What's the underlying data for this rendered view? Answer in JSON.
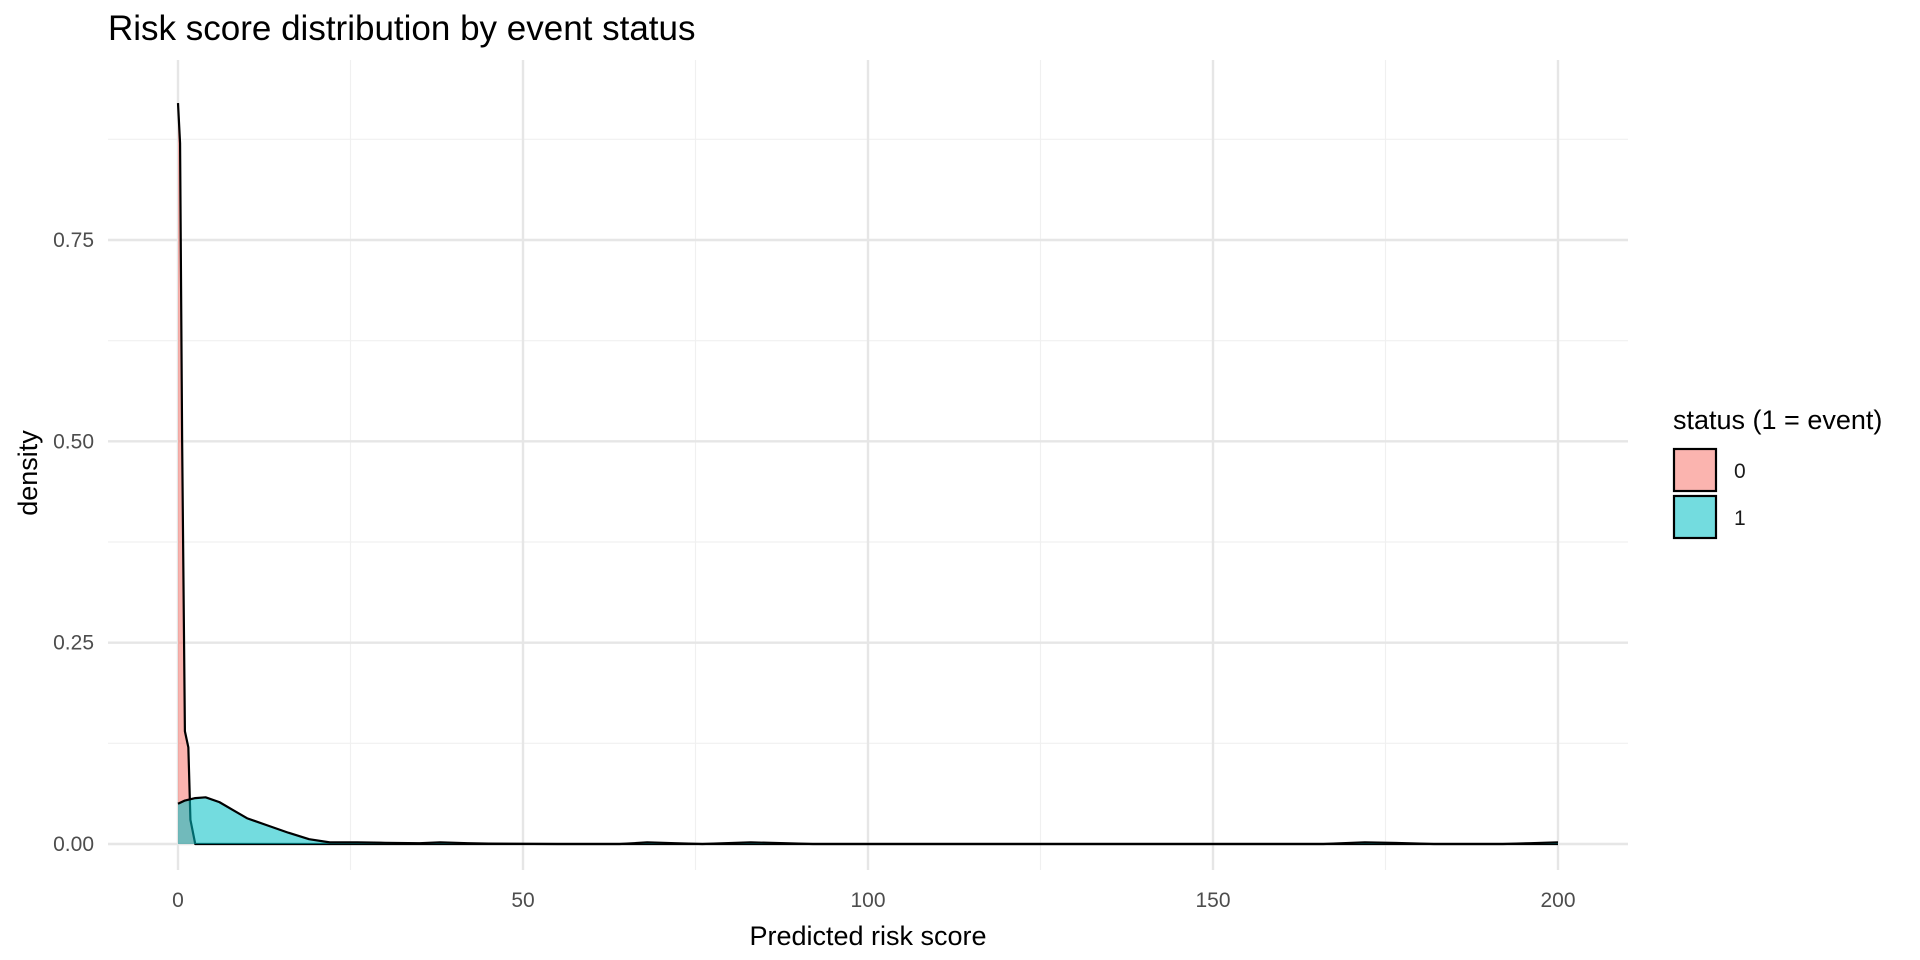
{
  "chart_data": {
    "type": "area",
    "title": "Risk score distribution by event status",
    "xlabel": "Predicted risk score",
    "ylabel": "density",
    "xlim": [
      -10,
      210
    ],
    "ylim": [
      0,
      0.93
    ],
    "x_ticks": [
      0,
      50,
      100,
      150,
      200
    ],
    "x_tick_labels": [
      "0",
      "50",
      "100",
      "150",
      "200"
    ],
    "y_ticks": [
      0,
      0.25,
      0.5,
      0.75
    ],
    "y_tick_labels": [
      "0.00",
      "0.25",
      "0.50",
      "0.75"
    ],
    "grid": true,
    "legend": {
      "title": "status (1 = event)",
      "position": "right"
    },
    "series": [
      {
        "name": "0",
        "color": "#F8766D",
        "points": [
          [
            0,
            0.92
          ],
          [
            0.3,
            0.87
          ],
          [
            0.6,
            0.5
          ],
          [
            1.0,
            0.14
          ],
          [
            1.5,
            0.12
          ],
          [
            1.8,
            0.03
          ],
          [
            2.5,
            0.0
          ],
          [
            5,
            0.0
          ],
          [
            200,
            0.0
          ]
        ]
      },
      {
        "name": "1",
        "color": "#00BFC4",
        "points": [
          [
            0,
            0.05
          ],
          [
            1,
            0.054
          ],
          [
            2.5,
            0.057
          ],
          [
            4,
            0.058
          ],
          [
            6,
            0.052
          ],
          [
            8,
            0.042
          ],
          [
            10,
            0.032
          ],
          [
            13,
            0.023
          ],
          [
            16,
            0.014
          ],
          [
            19,
            0.006
          ],
          [
            22,
            0.002
          ],
          [
            26,
            0.002
          ],
          [
            30,
            0.0015
          ],
          [
            35,
            0.001
          ],
          [
            38,
            0.002
          ],
          [
            42,
            0.001
          ],
          [
            45,
            0.0005
          ],
          [
            55,
            0.0
          ],
          [
            64,
            0.0
          ],
          [
            68,
            0.002
          ],
          [
            72,
            0.001
          ],
          [
            76,
            0.0
          ],
          [
            83,
            0.002
          ],
          [
            88,
            0.001
          ],
          [
            92,
            0.0
          ],
          [
            150,
            0.0
          ],
          [
            166,
            0.0
          ],
          [
            172,
            0.002
          ],
          [
            178,
            0.001
          ],
          [
            182,
            0.0
          ],
          [
            192,
            0.0
          ],
          [
            196,
            0.001
          ],
          [
            200,
            0.002
          ]
        ]
      }
    ]
  }
}
